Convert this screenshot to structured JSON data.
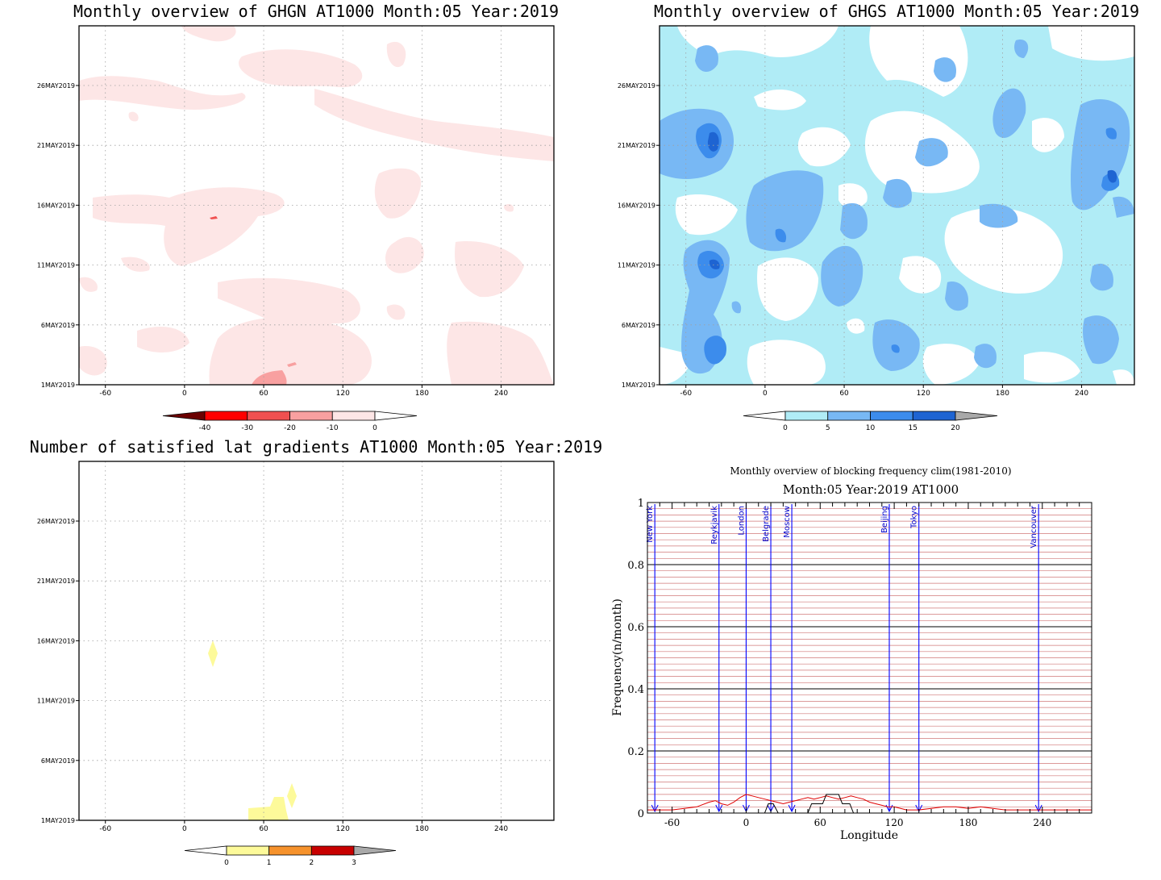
{
  "chart_data": [
    {
      "type": "heatmap",
      "title": "Monthly overview of GHGN AT1000 Month:05 Year:2019",
      "x_ticks": [
        -60,
        0,
        60,
        120,
        180,
        240
      ],
      "xlim": [
        -80,
        280
      ],
      "y_ticks": [
        "1MAY2019",
        "6MAY2019",
        "11MAY2019",
        "16MAY2019",
        "21MAY2019",
        "26MAY2019"
      ],
      "colorbar": {
        "labels": [
          "-40",
          "-30",
          "-20",
          "-10",
          "0"
        ],
        "colors": [
          "#6b0000",
          "#ff0000",
          "#f05050",
          "#f8a0a0",
          "#fde6e6",
          "#ffffff"
        ]
      }
    },
    {
      "type": "heatmap",
      "title": "Monthly overview of GHGS AT1000 Month:05 Year:2019",
      "x_ticks": [
        -60,
        0,
        60,
        120,
        180,
        240
      ],
      "xlim": [
        -80,
        280
      ],
      "y_ticks": [
        "1MAY2019",
        "6MAY2019",
        "11MAY2019",
        "16MAY2019",
        "21MAY2019",
        "26MAY2019"
      ],
      "colorbar": {
        "labels": [
          "0",
          "5",
          "10",
          "15",
          "20"
        ],
        "colors": [
          "#ffffff",
          "#b0ecf6",
          "#78b8f4",
          "#3c8cec",
          "#1e64d2",
          "#a9a9a9"
        ]
      }
    },
    {
      "type": "heatmap",
      "title": "Number of satisfied lat gradients AT1000 Month:05 Year:2019",
      "x_ticks": [
        -60,
        0,
        60,
        120,
        180,
        240
      ],
      "xlim": [
        -80,
        280
      ],
      "y_ticks": [
        "1MAY2019",
        "6MAY2019",
        "11MAY2019",
        "16MAY2019",
        "21MAY2019",
        "26MAY2019"
      ],
      "colorbar": {
        "labels": [
          "0",
          "1",
          "2",
          "3"
        ],
        "colors": [
          "#ffffff",
          "#fdfa9a",
          "#f6922c",
          "#c80000",
          "#a9a9a9"
        ]
      }
    },
    {
      "type": "line",
      "title": "Monthly overview of blocking frequency clim(1981-2010)",
      "subtitle": "Month:05 Year:2019  AT1000",
      "xlabel": "Longitude",
      "ylabel": "Frequency(n/month)",
      "xlim": [
        -80,
        280
      ],
      "ylim": [
        0,
        1
      ],
      "x_ticks": [
        -60,
        0,
        60,
        120,
        180,
        240
      ],
      "y_ticks": [
        "0",
        "0.2",
        "0.4",
        "0.6",
        "0.8",
        "1"
      ],
      "cities": [
        {
          "name": "New York",
          "lon": -74
        },
        {
          "name": "Reykjavik",
          "lon": -22
        },
        {
          "name": "London",
          "lon": 0
        },
        {
          "name": "Belgrade",
          "lon": 20
        },
        {
          "name": "Moscow",
          "lon": 37
        },
        {
          "name": "Beijing",
          "lon": 116
        },
        {
          "name": "Tokyo",
          "lon": 140
        },
        {
          "name": "Vancouver",
          "lon": 237
        }
      ],
      "series": [
        {
          "color": "#e00000",
          "x": [
            -80,
            -70,
            -60,
            -50,
            -40,
            -30,
            -25,
            -20,
            -15,
            -10,
            -5,
            0,
            5,
            10,
            15,
            20,
            25,
            30,
            35,
            40,
            45,
            50,
            55,
            60,
            65,
            70,
            75,
            80,
            85,
            90,
            95,
            100,
            105,
            110,
            115,
            120,
            130,
            140,
            150,
            160,
            170,
            180,
            190,
            200,
            210,
            220,
            230,
            240,
            250,
            260,
            270,
            280
          ],
          "y": [
            0.01,
            0.01,
            0.01,
            0.015,
            0.02,
            0.035,
            0.04,
            0.03,
            0.025,
            0.035,
            0.05,
            0.06,
            0.055,
            0.05,
            0.045,
            0.04,
            0.035,
            0.03,
            0.035,
            0.04,
            0.045,
            0.05,
            0.045,
            0.05,
            0.055,
            0.05,
            0.045,
            0.05,
            0.055,
            0.05,
            0.045,
            0.035,
            0.03,
            0.025,
            0.02,
            0.02,
            0.01,
            0.01,
            0.015,
            0.02,
            0.02,
            0.015,
            0.02,
            0.015,
            0.01,
            0.01,
            0.01,
            0.01,
            0.01,
            0.01,
            0.01,
            0.01
          ]
        },
        {
          "color": "#000000",
          "x": [
            -80,
            15,
            18,
            22,
            26,
            50,
            53,
            62,
            65,
            68,
            75,
            78,
            81,
            84,
            87,
            280
          ],
          "y": [
            0,
            0,
            0.03,
            0.03,
            0,
            0,
            0.03,
            0.03,
            0.06,
            0.06,
            0.06,
            0.03,
            0.03,
            0.03,
            0,
            0
          ]
        }
      ]
    }
  ]
}
